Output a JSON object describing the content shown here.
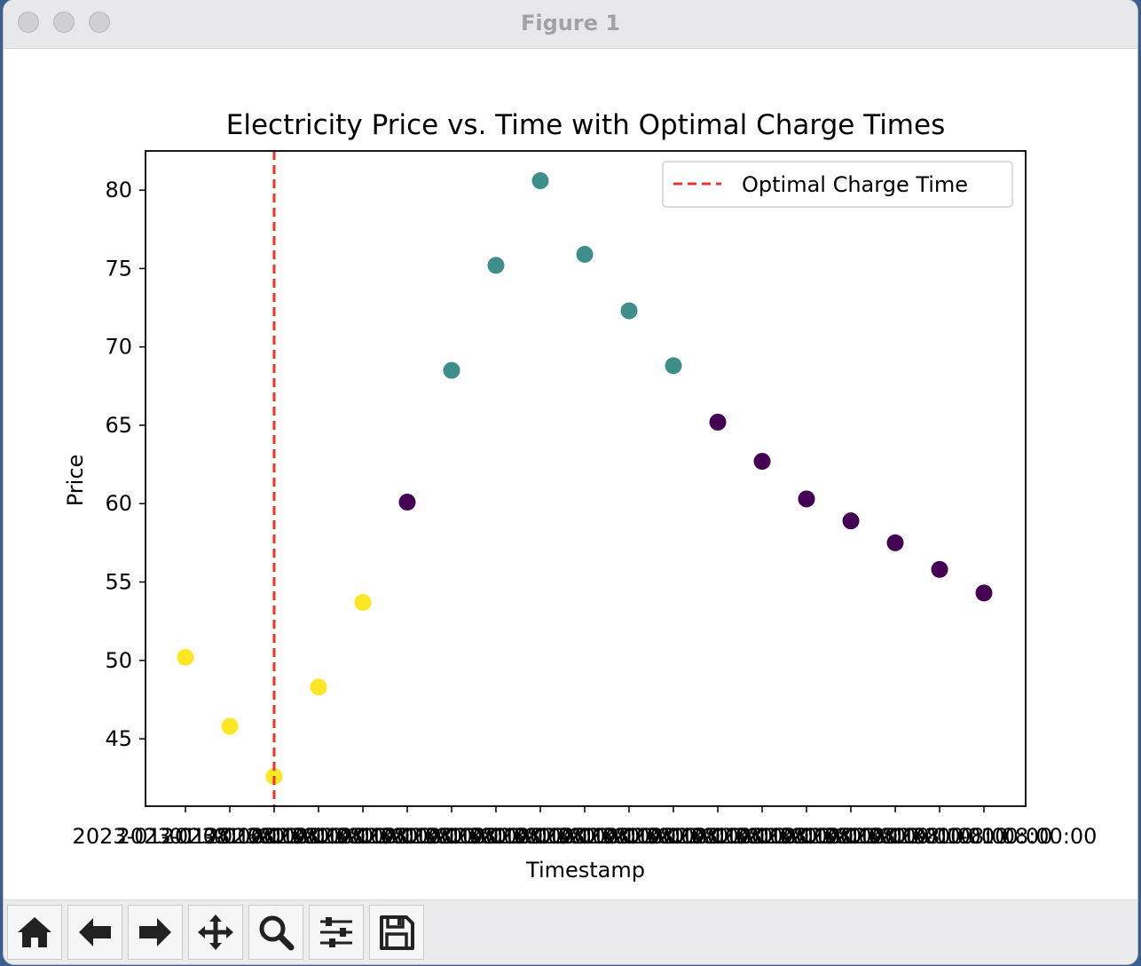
{
  "window": {
    "title": "Figure 1"
  },
  "toolbar": {
    "buttons": [
      {
        "name": "home-button",
        "icon": "home-icon"
      },
      {
        "name": "back-button",
        "icon": "arrow-left-icon"
      },
      {
        "name": "forward-button",
        "icon": "arrow-right-icon"
      },
      {
        "name": "pan-button",
        "icon": "move-icon"
      },
      {
        "name": "zoom-button",
        "icon": "magnifier-icon"
      },
      {
        "name": "configure-subplots-button",
        "icon": "sliders-icon"
      },
      {
        "name": "save-button",
        "icon": "floppy-disk-icon"
      }
    ]
  },
  "chart_data": {
    "type": "scatter",
    "title": "Electricity Price vs. Time with Optimal Charge Times",
    "xlabel": "Timestamp",
    "ylabel": "Price",
    "x_label_visible": "2023-01-01 08:00:00",
    "x_index": [
      0,
      1,
      2,
      3,
      4,
      5,
      6,
      7,
      8,
      9,
      10,
      11,
      12,
      13,
      14,
      15,
      16,
      17,
      18
    ],
    "y": [
      50.2,
      45.8,
      42.6,
      48.3,
      53.7,
      60.1,
      68.5,
      75.2,
      80.6,
      75.9,
      72.3,
      68.8,
      65.2,
      62.7,
      60.3,
      58.9,
      57.5,
      55.8,
      54.3
    ],
    "cluster": [
      2,
      2,
      2,
      2,
      2,
      0,
      1,
      1,
      1,
      1,
      1,
      1,
      0,
      0,
      0,
      0,
      0,
      0,
      0
    ],
    "cluster_colors": [
      "#440154",
      "#3e8f8b",
      "#fde725"
    ],
    "ylim": [
      40.7,
      82.5
    ],
    "yticks": [
      45,
      50,
      55,
      60,
      65,
      70,
      75,
      80
    ],
    "optimal_charge_index": 2,
    "optimal_line_color": "#e8352e",
    "legend": {
      "label": "Optimal Charge Time",
      "placement": "top-right"
    },
    "grid": false
  }
}
